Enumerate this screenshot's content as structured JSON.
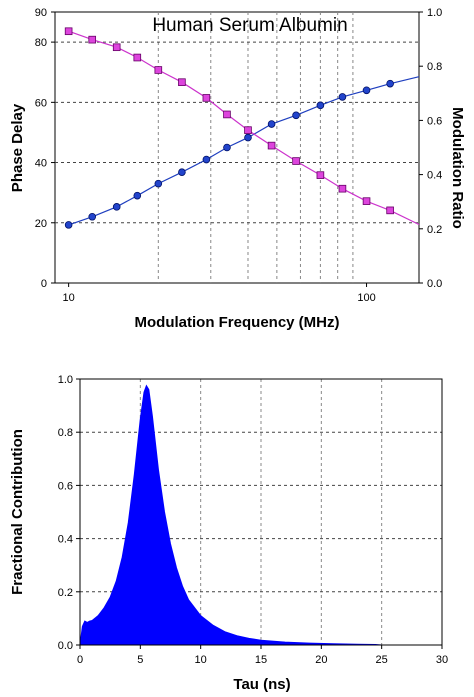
{
  "chart_data": [
    {
      "type": "line",
      "title": "Human Serum Albumin",
      "xlabel": "Modulation Frequency (MHz)",
      "ylabel": "Phase Delay",
      "y2label": "Modulation Ratio",
      "xscale": "log",
      "xlim": [
        9,
        150
      ],
      "ylim": [
        0,
        90
      ],
      "y2lim": [
        0,
        1
      ],
      "xticks": [
        "10",
        "100"
      ],
      "yticks": [
        "0",
        "20",
        "40",
        "60",
        "80",
        "90"
      ],
      "y2ticks": [
        "0.0",
        "0.2",
        "0.4",
        "0.6",
        "0.8",
        "1.0"
      ],
      "x": [
        10,
        12,
        14.5,
        17,
        20,
        24,
        29,
        34,
        40,
        48,
        58,
        70,
        83,
        100,
        120
      ],
      "series": [
        {
          "axis": "left",
          "marker": "circle",
          "color": "#1f3fbf",
          "values": [
            19.3,
            22.0,
            25.3,
            29.0,
            33.0,
            36.8,
            41.0,
            45.0,
            48.3,
            52.8,
            55.7,
            59.0,
            61.8,
            64.0,
            66.2
          ],
          "fit_line_end": [
            150,
            68.5
          ]
        },
        {
          "axis": "right",
          "marker": "square",
          "color": "#cc33cc",
          "values": [
            0.929,
            0.898,
            0.87,
            0.832,
            0.786,
            0.741,
            0.683,
            0.622,
            0.564,
            0.507,
            0.45,
            0.398,
            0.348,
            0.302,
            0.268
          ],
          "fit_line_end": [
            150,
            0.216
          ]
        }
      ],
      "grid": true
    },
    {
      "type": "area",
      "title": "",
      "xlabel": "Tau (ns)",
      "ylabel": "Fractional Contribution",
      "xlim": [
        0,
        30
      ],
      "ylim": [
        0,
        1
      ],
      "xticks": [
        "0",
        "5",
        "10",
        "15",
        "20",
        "25",
        "30"
      ],
      "yticks": [
        "0.0",
        "0.2",
        "0.4",
        "0.6",
        "0.8",
        "1.0"
      ],
      "color": "#0000ff",
      "points": [
        [
          0.0,
          0.0
        ],
        [
          0.2,
          0.07
        ],
        [
          0.4,
          0.09
        ],
        [
          0.6,
          0.085
        ],
        [
          0.8,
          0.09
        ],
        [
          1.0,
          0.092
        ],
        [
          1.5,
          0.11
        ],
        [
          2.0,
          0.14
        ],
        [
          2.5,
          0.18
        ],
        [
          3.0,
          0.24
        ],
        [
          3.5,
          0.33
        ],
        [
          4.0,
          0.46
        ],
        [
          4.5,
          0.64
        ],
        [
          5.0,
          0.85
        ],
        [
          5.3,
          0.95
        ],
        [
          5.5,
          0.975
        ],
        [
          5.7,
          0.96
        ],
        [
          6.0,
          0.86
        ],
        [
          6.5,
          0.66
        ],
        [
          7.0,
          0.5
        ],
        [
          7.5,
          0.38
        ],
        [
          8.0,
          0.29
        ],
        [
          8.5,
          0.22
        ],
        [
          9.0,
          0.17
        ],
        [
          10.0,
          0.11
        ],
        [
          11.0,
          0.075
        ],
        [
          12.0,
          0.05
        ],
        [
          13.0,
          0.035
        ],
        [
          14.0,
          0.025
        ],
        [
          15.0,
          0.018
        ],
        [
          17.0,
          0.011
        ],
        [
          19.0,
          0.007
        ],
        [
          21.0,
          0.005
        ],
        [
          23.0,
          0.003
        ],
        [
          24.5,
          0.002
        ],
        [
          25.0,
          0.0
        ]
      ],
      "grid": true
    }
  ]
}
